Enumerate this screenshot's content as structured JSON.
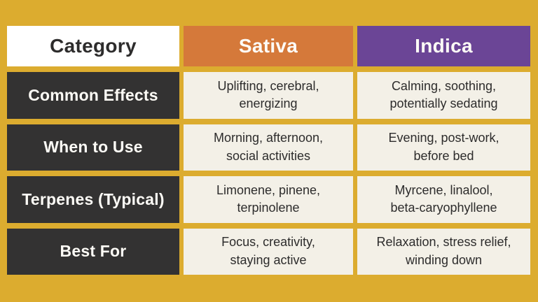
{
  "colors": {
    "gold": "#DCAC2F",
    "orange": "#D5793A",
    "purple": "#6B4596",
    "charcoal": "#333232",
    "cream": "#F3F0E7",
    "white": "#FFFFFF",
    "dark-text": "#2D2C2C",
    "light-text": "#FDFBF6"
  },
  "table": {
    "header": {
      "category": "Category",
      "sativa": "Sativa",
      "indica": "Indica"
    },
    "rows": [
      {
        "category": "Common Effects",
        "sativa": "Uplifting, cerebral,\nenergizing",
        "indica": "Calming, soothing,\npotentially sedating"
      },
      {
        "category": "When to Use",
        "sativa": "Morning, afternoon,\nsocial activities",
        "indica": "Evening, post-work,\nbefore bed"
      },
      {
        "category": "Terpenes (Typical)",
        "sativa": "Limonene, pinene,\nterpinolene",
        "indica": "Myrcene, linalool,\nbeta-caryophyllene"
      },
      {
        "category": "Best For",
        "sativa": "Focus, creativity,\nstaying active",
        "indica": "Relaxation, stress relief,\nwinding down"
      }
    ]
  },
  "chart_data": {
    "type": "table",
    "columns": [
      "Category",
      "Sativa",
      "Indica"
    ],
    "rows": [
      [
        "Common Effects",
        "Uplifting, cerebral, energizing",
        "Calming, soothing, potentially sedating"
      ],
      [
        "When to Use",
        "Morning, afternoon, social activities",
        "Evening, post-work, before bed"
      ],
      [
        "Terpenes (Typical)",
        "Limonene, pinene, terpinolene",
        "Myrcene, linalool, beta-caryophyllene"
      ],
      [
        "Best For",
        "Focus, creativity, staying active",
        "Relaxation, stress relief, winding down"
      ]
    ],
    "layout_hints": {
      "header_colors": [
        "#FFFFFF",
        "#D5793A",
        "#6B4596"
      ],
      "row_label_background": "#333232",
      "cell_background": "#F3F0E7",
      "page_background": "#DCAC2F",
      "grid": "gold gaps between flat rectangular cells, no border radius"
    }
  }
}
